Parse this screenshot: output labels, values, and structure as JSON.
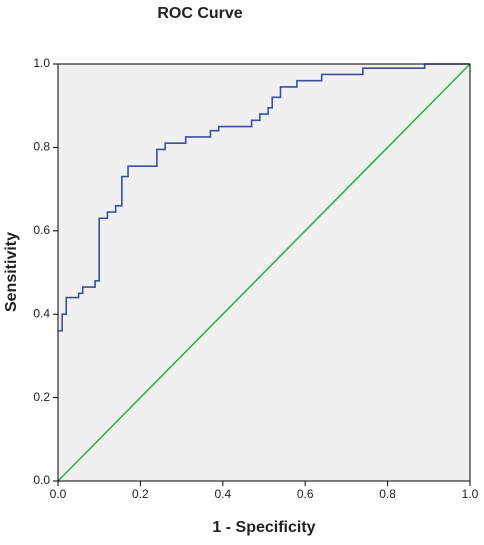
{
  "chart_data": {
    "type": "line",
    "title": "ROC Curve",
    "x_label": "1 - Specificity",
    "y_label": "Sensitivity",
    "xlim": [
      0,
      1
    ],
    "ylim": [
      0,
      1
    ],
    "xticks": [
      {
        "value": 0,
        "label": "0.0"
      },
      0.2,
      0.4,
      0.6,
      0.8,
      {
        "value": 1,
        "label": "1.0"
      }
    ],
    "yticks": [
      {
        "value": 0,
        "label": "0.0"
      },
      0.2,
      0.4,
      0.6,
      0.8,
      {
        "value": 1,
        "label": "1.0"
      }
    ],
    "background": "#f0f0f0",
    "series": [
      {
        "color": "#3b4f9b",
        "x": [
          0,
          0.01,
          0.01,
          0.02,
          0.02,
          0.05,
          0.05,
          0.06,
          0.06,
          0.09,
          0.09,
          0.1,
          0.1,
          0.12,
          0.12,
          0.14,
          0.14,
          0.155,
          0.155,
          0.17,
          0.17,
          0.24,
          0.24,
          0.26,
          0.26,
          0.31,
          0.31,
          0.37,
          0.37,
          0.39,
          0.39,
          0.47,
          0.47,
          0.49,
          0.49,
          0.51,
          0.51,
          0.52,
          0.52,
          0.54,
          0.54,
          0.58,
          0.58,
          0.64,
          0.64,
          0.74,
          0.74,
          0.89,
          0.89,
          1
        ],
        "values": [
          0.36,
          0.36,
          0.4,
          0.4,
          0.44,
          0.44,
          0.45,
          0.45,
          0.465,
          0.465,
          0.48,
          0.48,
          0.63,
          0.63,
          0.645,
          0.645,
          0.66,
          0.66,
          0.73,
          0.73,
          0.755,
          0.755,
          0.795,
          0.795,
          0.81,
          0.81,
          0.825,
          0.825,
          0.84,
          0.84,
          0.85,
          0.85,
          0.865,
          0.865,
          0.88,
          0.88,
          0.895,
          0.895,
          0.92,
          0.92,
          0.945,
          0.945,
          0.96,
          0.96,
          0.975,
          0.975,
          0.99,
          0.99,
          1,
          1
        ]
      },
      {
        "color": "#2db34a",
        "x": [
          0,
          1
        ],
        "values": [
          0,
          1
        ]
      }
    ]
  }
}
